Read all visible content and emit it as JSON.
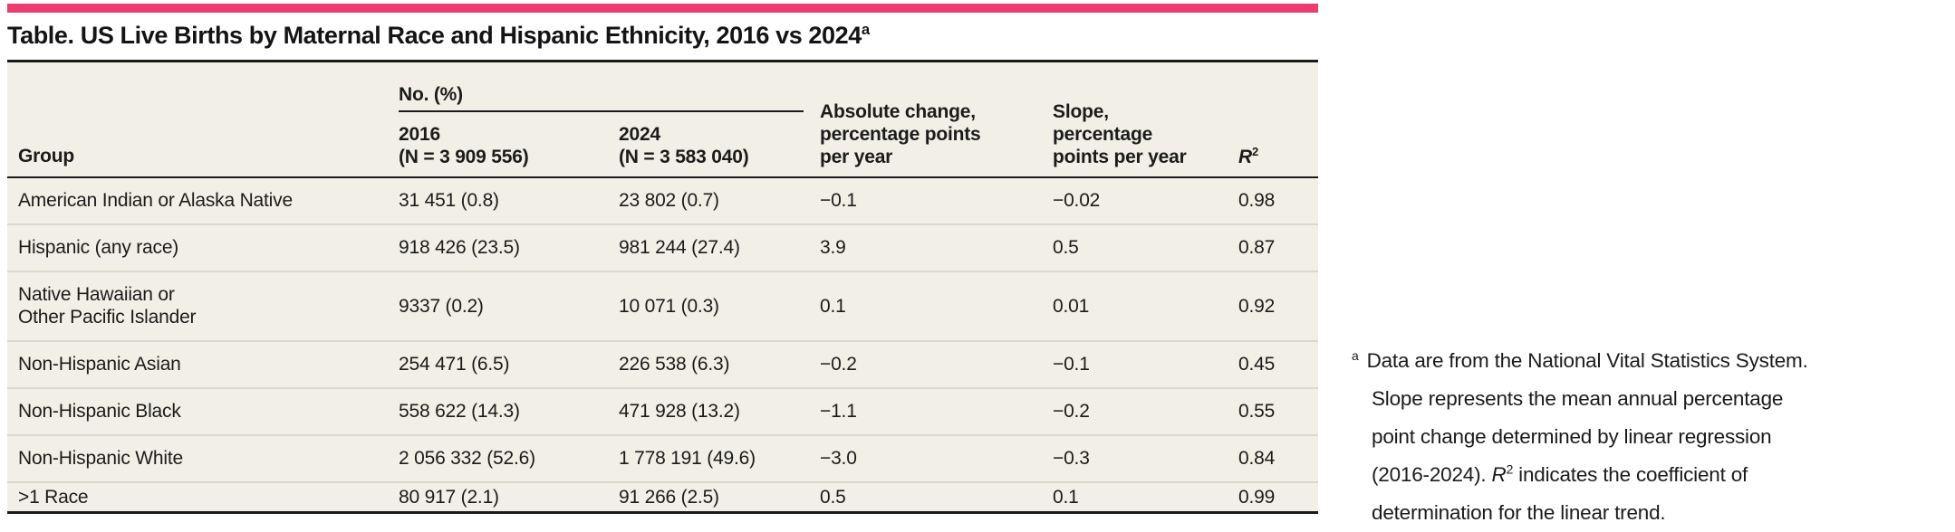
{
  "colors": {
    "accent_pink": "#ed3d70",
    "table_background": "#f2f0e6",
    "dark_border": "#1a1a1a",
    "row_divider": "#dbd8c9",
    "text": "#1b1b1b"
  },
  "title": {
    "text": "Table. US Live Births by Maternal Race and Hispanic Ethnicity, 2016 vs 2024",
    "footnote_marker": "a"
  },
  "table": {
    "spanner_header": "No. (%)",
    "columns": {
      "group": "Group",
      "col_2016": "2016\n(N = 3 909 556)",
      "col_2024": "2024\n(N = 3 583 040)",
      "absolute_change": "Absolute change,\npercentage points\nper year",
      "slope": "Slope,\npercentage\npoints per year",
      "r2_base": "R",
      "r2_sup": "2"
    },
    "rows": [
      {
        "group": "American Indian or Alaska Native",
        "n_2016": "31 451 (0.8)",
        "n_2024": "23 802 (0.7)",
        "absolute_change": "−0.1",
        "slope": "−0.02",
        "r2": "0.98"
      },
      {
        "group": "Hispanic (any race)",
        "n_2016": "918 426 (23.5)",
        "n_2024": "981 244 (27.4)",
        "absolute_change": "3.9",
        "slope": "0.5",
        "r2": "0.87"
      },
      {
        "group": "Native Hawaiian or\nOther Pacific Islander",
        "n_2016": "9337 (0.2)",
        "n_2024": "10 071 (0.3)",
        "absolute_change": "0.1",
        "slope": "0.01",
        "r2": "0.92"
      },
      {
        "group": "Non-Hispanic Asian",
        "n_2016": "254 471 (6.5)",
        "n_2024": "226 538 (6.3)",
        "absolute_change": "−0.2",
        "slope": "−0.1",
        "r2": "0.45"
      },
      {
        "group": "Non-Hispanic Black",
        "n_2016": "558 622 (14.3)",
        "n_2024": "471 928 (13.2)",
        "absolute_change": "−1.1",
        "slope": "−0.2",
        "r2": "0.55"
      },
      {
        "group": "Non-Hispanic White",
        "n_2016": "2 056 332 (52.6)",
        "n_2024": "1 778 191 (49.6)",
        "absolute_change": "−3.0",
        "slope": "−0.3",
        "r2": "0.84"
      },
      {
        "group": ">1 Race",
        "n_2016": "80 917 (2.1)",
        "n_2024": "91 266 (2.5)",
        "absolute_change": "0.5",
        "slope": "0.1",
        "r2": "0.99"
      }
    ]
  },
  "footnote": {
    "marker": "a",
    "text_before_r2": "Data are from the National Vital Statistics System.\nSlope represents the mean annual percentage\npoint change determined by linear regression\n(2016-2024). ",
    "r2_base": "R",
    "r2_sup": "2",
    "text_after_r2": " indicates the coefficient of\ndetermination for the linear trend."
  }
}
